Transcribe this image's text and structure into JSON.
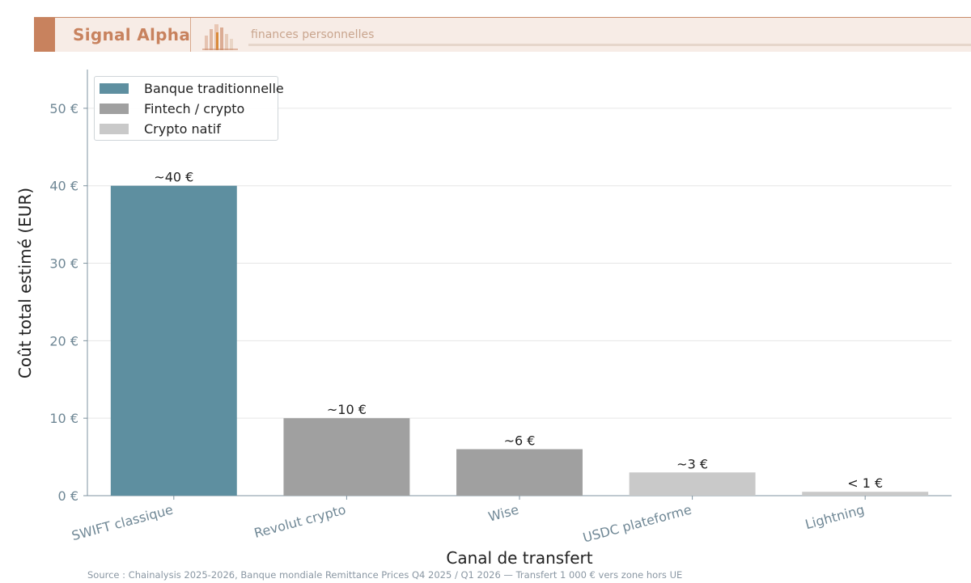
{
  "header": {
    "brand": "Signal Alpha",
    "tagline": "finances personnelles",
    "colors": {
      "accent": "#c8825e",
      "band": "#f7ece6"
    }
  },
  "source_note": "Source : Chainalysis 2025-2026, Banque mondiale Remittance Prices Q4 2025 / Q1 2026 — Transfert 1 000 € vers zone hors UE",
  "chart_data": {
    "type": "bar",
    "title": "",
    "xlabel": "Canal de transfert",
    "ylabel": "Coût total estimé (EUR)",
    "ylim": [
      0,
      55
    ],
    "yticks": [
      0,
      10,
      20,
      30,
      40,
      50
    ],
    "ytick_labels": [
      "0 €",
      "10 €",
      "20 €",
      "30 €",
      "40 €",
      "50 €"
    ],
    "grid": true,
    "legend_position": "top-left",
    "categories": [
      "SWIFT classique",
      "Revolut crypto",
      "Wise",
      "USDC plateforme",
      "Lightning"
    ],
    "values": [
      40,
      10,
      6,
      3,
      0.5
    ],
    "data_labels": [
      "~40 €",
      "~10 €",
      "~6 €",
      "~3 €",
      "< 1 €"
    ],
    "groups": [
      "Banque traditionnelle",
      "Fintech / crypto",
      "Fintech / crypto",
      "Crypto natif",
      "Crypto natif"
    ],
    "legend": [
      {
        "name": "Banque traditionnelle",
        "color": "#5e8fa0"
      },
      {
        "name": "Fintech / crypto",
        "color": "#a0a0a0"
      },
      {
        "name": "Crypto natif",
        "color": "#c9c9c9"
      }
    ],
    "colors": [
      "#5e8fa0",
      "#a0a0a0",
      "#a0a0a0",
      "#c9c9c9",
      "#c9c9c9"
    ]
  }
}
